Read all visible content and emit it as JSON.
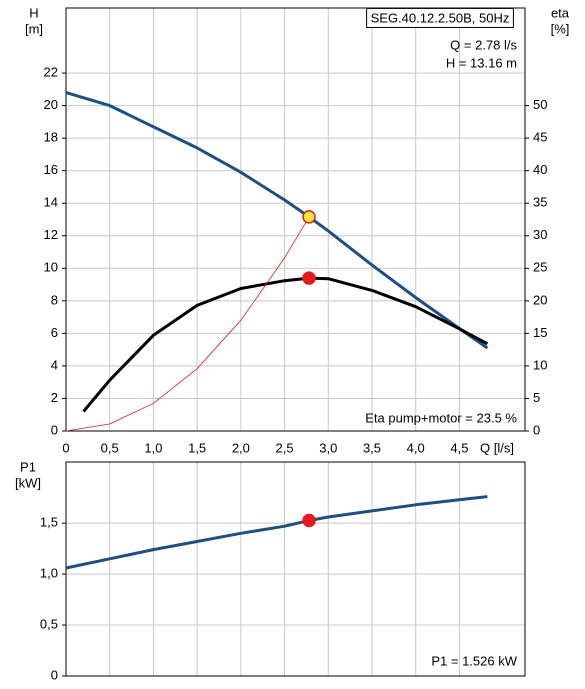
{
  "chart_data": [
    {
      "type": "line",
      "axis_labels": {
        "y": [
          "H",
          "[m]"
        ],
        "y2": [
          "eta",
          "[%]"
        ],
        "x": "Q [l/s]"
      },
      "annotations": [
        "SEG.40.12.2.50B, 50Hz",
        "Q = 2.78 l/s",
        "H = 13.16 m",
        "Eta pump+motor = 23.5 %"
      ],
      "xlim": [
        0,
        5.25
      ],
      "xticks": [
        0,
        {
          "value": 0.5,
          "label": "0,5"
        },
        {
          "value": 1.0,
          "label": "1,0"
        },
        {
          "value": 1.5,
          "label": "1,5"
        },
        {
          "value": 2.0,
          "label": "2,0"
        },
        {
          "value": 2.5,
          "label": "2,5"
        },
        {
          "value": 3.0,
          "label": "3,0"
        },
        {
          "value": 3.5,
          "label": "3,5"
        },
        {
          "value": 4.0,
          "label": "4,0"
        },
        {
          "value": 4.5,
          "label": "4,5"
        }
      ],
      "ylim": [
        0,
        26
      ],
      "yticks": [
        0,
        2,
        4,
        6,
        8,
        10,
        12,
        14,
        16,
        18,
        20,
        22
      ],
      "y2lim": [
        0,
        65
      ],
      "y2ticks": [
        0,
        5,
        10,
        15,
        20,
        25,
        30,
        35,
        40,
        45,
        50
      ],
      "grid": true,
      "series": [
        {
          "color": "#1b4f8a",
          "width": 3,
          "x": [
            0,
            0.5,
            1.0,
            1.5,
            2.0,
            2.5,
            2.78,
            3.0,
            3.5,
            4.0,
            4.5,
            4.82
          ],
          "values": [
            20.8,
            20.0,
            18.7,
            17.4,
            15.9,
            14.2,
            13.16,
            12.3,
            10.2,
            8.2,
            6.3,
            5.1
          ]
        },
        {
          "color": "#000000",
          "width": 3,
          "axis": "y2",
          "x": [
            0.2,
            0.5,
            1.0,
            1.5,
            2.0,
            2.5,
            2.78,
            3.0,
            3.5,
            4.0,
            4.5,
            4.82
          ],
          "values": [
            3,
            7.8,
            14.7,
            19.3,
            21.9,
            23.1,
            23.5,
            23.4,
            21.6,
            19.1,
            15.7,
            13.4
          ]
        },
        {
          "color": "#e8191b",
          "width": 0.8,
          "x": [
            0,
            0.5,
            1.0,
            1.5,
            2.0,
            2.5,
            2.78
          ],
          "values": [
            0,
            0.43,
            1.7,
            3.83,
            6.81,
            10.64,
            13.16
          ]
        }
      ],
      "markers": [
        {
          "x": 2.78,
          "y": 13.16,
          "color": "#f3e83a",
          "edge": "#e8191b"
        },
        {
          "x": 2.78,
          "y": 23.5,
          "axis": "y2",
          "color": "#e8191b",
          "edge": "#e8191b"
        }
      ]
    },
    {
      "type": "line",
      "axis_labels": {
        "y": [
          "P1",
          "[kW]"
        ]
      },
      "annotations": [
        "P1 = 1.526 kW"
      ],
      "xlim": [
        0,
        5.25
      ],
      "xticks": [
        0,
        0.5,
        1.0,
        1.5,
        2.0,
        2.5,
        3.0,
        3.5,
        4.0,
        4.5
      ],
      "ylim": [
        0,
        2.1
      ],
      "yticks": [
        0,
        {
          "value": 0.5,
          "label": "0,5"
        },
        {
          "value": 1.0,
          "label": "1,0"
        },
        {
          "value": 1.5,
          "label": "1,5"
        }
      ],
      "grid": true,
      "series": [
        {
          "color": "#1b4f8a",
          "width": 3,
          "x": [
            0,
            0.5,
            1.0,
            1.5,
            2.0,
            2.5,
            2.78,
            3.0,
            3.5,
            4.0,
            4.5,
            4.82
          ],
          "values": [
            1.06,
            1.15,
            1.24,
            1.32,
            1.4,
            1.47,
            1.526,
            1.56,
            1.62,
            1.68,
            1.73,
            1.76
          ]
        }
      ],
      "markers": [
        {
          "x": 2.78,
          "y": 1.526,
          "color": "#e8191b",
          "edge": "#e8191b"
        }
      ]
    }
  ]
}
